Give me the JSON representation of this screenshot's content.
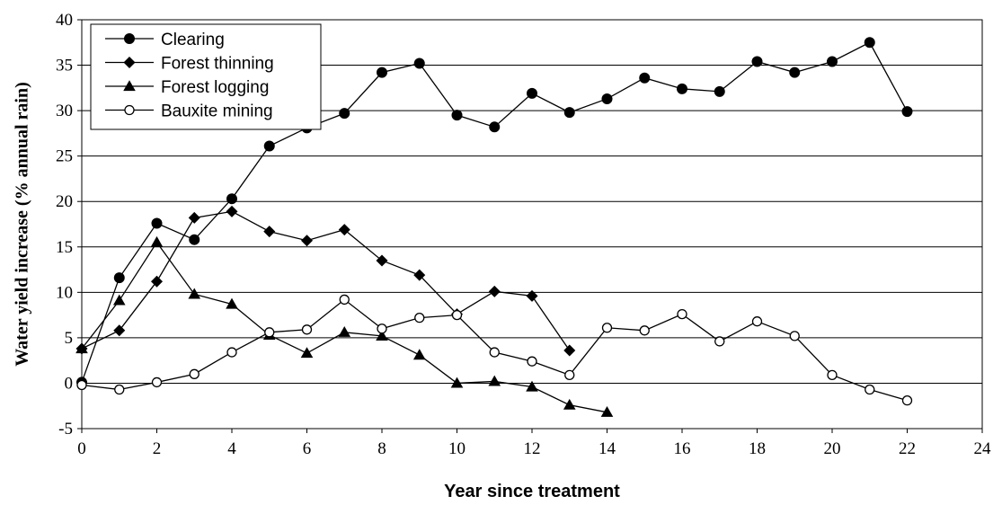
{
  "chart_data": {
    "type": "line",
    "title": "",
    "xlabel": "Year since treatment",
    "ylabel": "Water yield increase (% annual rain)",
    "xlim": [
      0,
      24
    ],
    "ylim": [
      -5,
      40
    ],
    "x_ticks": [
      "0",
      "2",
      "4",
      "6",
      "8",
      "10",
      "12",
      "14",
      "16",
      "18",
      "20",
      "22",
      "24"
    ],
    "y_ticks": [
      "-5",
      "0",
      "5",
      "10",
      "15",
      "20",
      "25",
      "30",
      "35",
      "40"
    ],
    "grid": "horizontal",
    "legend_position": "top-left",
    "series": [
      {
        "name": "Clearing",
        "marker": "filled-circle",
        "x": [
          0,
          1,
          2,
          3,
          4,
          5,
          6,
          7,
          8,
          9,
          10,
          11,
          12,
          13,
          14,
          15,
          16,
          17,
          18,
          19,
          20,
          21,
          22
        ],
        "y": [
          0.1,
          11.6,
          17.6,
          15.8,
          20.3,
          26.1,
          28.1,
          29.7,
          34.2,
          35.2,
          29.5,
          28.2,
          31.9,
          29.8,
          31.3,
          33.6,
          32.4,
          32.1,
          35.4,
          34.2,
          35.4,
          37.5,
          29.9
        ]
      },
      {
        "name": "Forest thinning",
        "marker": "filled-diamond",
        "x": [
          0,
          1,
          2,
          3,
          4,
          5,
          6,
          7,
          8,
          9,
          10,
          11,
          12,
          13
        ],
        "y": [
          3.8,
          5.8,
          11.2,
          18.2,
          18.9,
          16.7,
          15.7,
          16.9,
          13.5,
          11.9,
          7.6,
          10.1,
          9.6,
          3.6
        ]
      },
      {
        "name": "Forest logging",
        "marker": "filled-triangle",
        "x": [
          0,
          1,
          2,
          3,
          4,
          5,
          6,
          7,
          8,
          9,
          10,
          11,
          12,
          13,
          14
        ],
        "y": [
          3.8,
          9.1,
          15.5,
          9.8,
          8.7,
          5.3,
          3.3,
          5.6,
          5.2,
          3.1,
          0.0,
          0.2,
          -0.4,
          -2.4,
          -3.2
        ]
      },
      {
        "name": "Bauxite mining",
        "marker": "open-circle",
        "x": [
          0,
          1,
          2,
          3,
          4,
          5,
          6,
          7,
          8,
          9,
          10,
          11,
          12,
          13,
          14,
          15,
          16,
          17,
          18,
          19,
          20,
          21,
          22
        ],
        "y": [
          -0.2,
          -0.7,
          0.1,
          1.0,
          3.4,
          5.6,
          5.9,
          9.2,
          6.0,
          7.2,
          7.5,
          3.4,
          2.4,
          0.9,
          6.1,
          5.8,
          7.6,
          4.6,
          6.8,
          5.2,
          0.9,
          -0.7,
          -1.9
        ]
      }
    ]
  }
}
